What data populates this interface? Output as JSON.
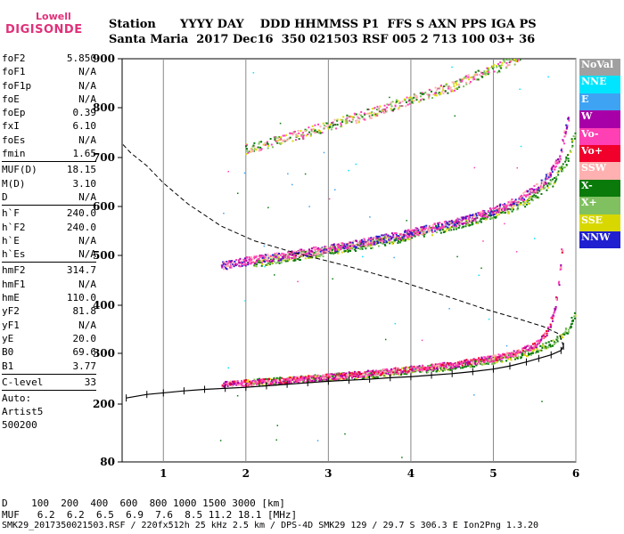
{
  "logo": {
    "line1": "Lowell",
    "line2": "DIGISONDE"
  },
  "header": {
    "row1": "Station      YYYY DAY    DDD HHMMSS P1  FFS S AXN PPS IGA PS",
    "row2": "Santa Maria  2017 Dec16  350 021503 RSF 005 2 713 100 03+ 36"
  },
  "params_group1": [
    {
      "name": "foF2",
      "value": "5.850"
    },
    {
      "name": "foF1",
      "value": "N/A"
    },
    {
      "name": "foF1p",
      "value": "N/A"
    },
    {
      "name": "foE",
      "value": "N/A"
    },
    {
      "name": "foEp",
      "value": "0.39"
    },
    {
      "name": "fxI",
      "value": "6.10"
    },
    {
      "name": "foEs",
      "value": "N/A"
    },
    {
      "name": "fmin",
      "value": "1.65"
    }
  ],
  "params_group2": [
    {
      "name": "MUF(D)",
      "value": "18.15"
    },
    {
      "name": "M(D)",
      "value": "3.10"
    },
    {
      "name": "D",
      "value": "N/A"
    }
  ],
  "params_group3": [
    {
      "name": "h`F",
      "value": "240.0"
    },
    {
      "name": "h`F2",
      "value": "240.0"
    },
    {
      "name": "h`E",
      "value": "N/A"
    },
    {
      "name": "h`Es",
      "value": "N/A"
    }
  ],
  "params_group4": [
    {
      "name": "hmF2",
      "value": "314.7"
    },
    {
      "name": "hmF1",
      "value": "N/A"
    },
    {
      "name": "hmE",
      "value": "110.0"
    },
    {
      "name": "yF2",
      "value": "81.8"
    },
    {
      "name": "yF1",
      "value": "N/A"
    },
    {
      "name": "yE",
      "value": "20.0"
    },
    {
      "name": "B0",
      "value": "69.6"
    },
    {
      "name": "B1",
      "value": "3.77"
    }
  ],
  "params_group5": [
    {
      "name": "C-level",
      "value": "33"
    }
  ],
  "auto_text": {
    "l1": "Auto:",
    "l2": "Artist5",
    "l3": "500200"
  },
  "legend": [
    {
      "label": "NoVal",
      "color": "#a0a0a0"
    },
    {
      "label": "NNE",
      "color": "#00e5ff"
    },
    {
      "label": "E",
      "color": "#3fa3f3"
    },
    {
      "label": "W",
      "color": "#a800a8"
    },
    {
      "label": "Vo-",
      "color": "#ff3fb4"
    },
    {
      "label": "Vo+",
      "color": "#f0002a"
    },
    {
      "label": "SSW",
      "color": "#ffb0b0"
    },
    {
      "label": "X-",
      "color": "#0a7a0a"
    },
    {
      "label": "X+",
      "color": "#80c060"
    },
    {
      "label": "SSE",
      "color": "#d8d800"
    },
    {
      "label": "NNW",
      "color": "#2020d0"
    }
  ],
  "bottom": {
    "row1": "D    100  200  400  600  800 1000 1500 3000 [km]",
    "row2": "MUF   6.2  6.2  6.5  6.9  7.6  8.5 11.2 18.1 [MHz]",
    "footer": "SMK29_2017350021503.RSF / 220fx512h 25 kHz 2.5 km / DPS-4D SMK29 129 / 29.7 S 306.3 E Ion2Png 1.3.20"
  },
  "chart_data": {
    "type": "scatter",
    "xlim": [
      0.5,
      6.0
    ],
    "ylim_scale": "log",
    "yticks": [
      80,
      200,
      300,
      400,
      500,
      600,
      700,
      800,
      900
    ],
    "xticks": [
      1,
      2,
      3,
      4,
      5,
      6
    ],
    "grid": "vertical",
    "traces": {
      "virtual_height_O_F2": {
        "x": [
          1.7,
          2.0,
          2.5,
          3.0,
          3.5,
          4.0,
          4.5,
          5.0,
          5.3,
          5.5,
          5.65,
          5.75,
          5.82
        ],
        "y": [
          240,
          243,
          248,
          255,
          262,
          270,
          279,
          292,
          304,
          318,
          345,
          400,
          510
        ]
      },
      "virtual_height_X_F2": {
        "x": [
          2.0,
          2.5,
          3.0,
          3.5,
          4.0,
          4.5,
          5.0,
          5.4,
          5.7,
          5.9,
          6.0
        ],
        "y": [
          243,
          248,
          254,
          260,
          268,
          276,
          288,
          302,
          322,
          350,
          388
        ]
      },
      "second_hop_O": {
        "x": [
          1.7,
          2.0,
          2.5,
          3.0,
          3.5,
          4.0,
          4.5,
          5.0,
          5.3,
          5.6,
          5.8,
          5.9
        ],
        "y": [
          480,
          490,
          502,
          515,
          530,
          548,
          567,
          592,
          615,
          650,
          700,
          780
        ]
      },
      "second_hop_X": {
        "x": [
          2.1,
          2.5,
          3.0,
          3.5,
          4.0,
          4.5,
          5.0,
          5.4,
          5.7,
          5.9,
          6.0
        ],
        "y": [
          485,
          498,
          510,
          525,
          542,
          562,
          585,
          612,
          650,
          700,
          760
        ]
      },
      "third_hop": {
        "x": [
          2.0,
          2.5,
          3.0,
          3.5,
          4.0,
          4.5,
          5.0,
          5.3
        ],
        "y": [
          718,
          740,
          765,
          790,
          818,
          845,
          880,
          905
        ]
      },
      "electron_density_profile": {
        "x": [
          0.55,
          0.8,
          1.0,
          1.25,
          1.5,
          1.75,
          2.0,
          2.25,
          2.5,
          2.75,
          3.0,
          3.25,
          3.5,
          3.75,
          4.0,
          4.25,
          4.5,
          4.75,
          5.0,
          5.2,
          5.4,
          5.55,
          5.7,
          5.82,
          5.85
        ],
        "y": [
          212,
          219,
          222,
          226,
          229,
          231,
          233,
          236,
          239,
          242,
          245,
          247,
          249,
          252,
          254,
          257,
          260,
          264,
          269,
          275,
          283,
          290,
          297,
          306,
          314.7
        ]
      },
      "profile_topside_model": {
        "x": [
          5.85,
          5.8,
          5.6,
          5.3,
          4.9,
          4.4,
          3.8,
          3.2,
          2.6,
          2.1,
          1.7,
          1.3,
          1.0,
          0.8,
          0.6,
          0.5
        ],
        "y": [
          314.7,
          340,
          356,
          372,
          392,
          420,
          452,
          480,
          505,
          530,
          560,
          605,
          648,
          683,
          710,
          728
        ]
      }
    }
  }
}
